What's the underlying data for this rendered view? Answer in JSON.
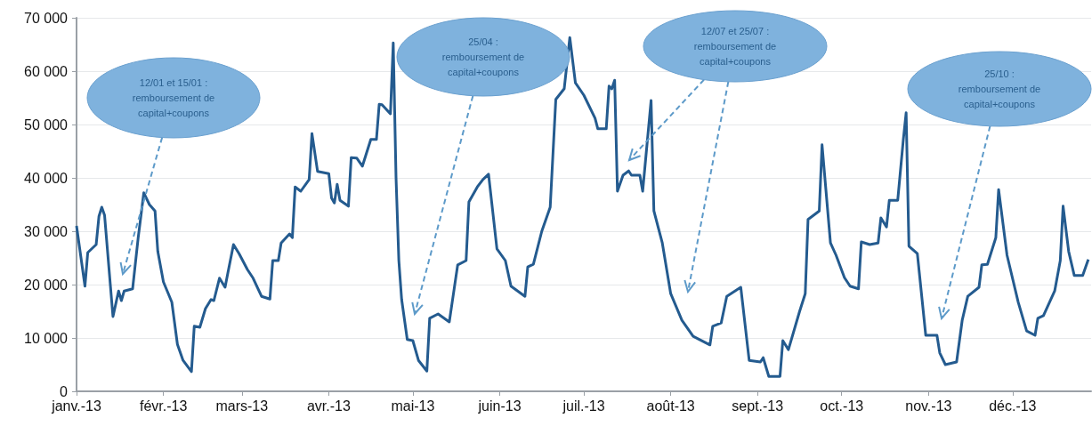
{
  "chart_data": {
    "type": "line",
    "grid": "y",
    "marker": "none",
    "line_style": "solid",
    "xlim": [
      "2013-01-01",
      "2013-12-29"
    ],
    "xticks": [
      {
        "value": "2013-01-01",
        "label": "janv.-13"
      },
      {
        "value": "2013-02-01",
        "label": "févr.-13"
      },
      {
        "value": "2013-03-01",
        "label": "mars-13"
      },
      {
        "value": "2013-04-01",
        "label": "avr.-13"
      },
      {
        "value": "2013-05-01",
        "label": "mai-13"
      },
      {
        "value": "2013-06-01",
        "label": "juin-13"
      },
      {
        "value": "2013-07-01",
        "label": "juil.-13"
      },
      {
        "value": "2013-08-01",
        "label": "août-13"
      },
      {
        "value": "2013-09-01",
        "label": "sept.-13"
      },
      {
        "value": "2013-10-01",
        "label": "oct.-13"
      },
      {
        "value": "2013-11-01",
        "label": "nov.-13"
      },
      {
        "value": "2013-12-01",
        "label": "déc.-13"
      }
    ],
    "ylim": [
      0,
      70000
    ],
    "yticks": [
      {
        "value": 0,
        "label": "0"
      },
      {
        "value": 10000,
        "label": "10 000"
      },
      {
        "value": 20000,
        "label": "20 000"
      },
      {
        "value": 30000,
        "label": "30 000"
      },
      {
        "value": 40000,
        "label": "40 000"
      },
      {
        "value": 50000,
        "label": "50 000"
      },
      {
        "value": 60000,
        "label": "60 000"
      },
      {
        "value": 70000,
        "label": "70 000"
      }
    ],
    "x": [
      "2013-01-01",
      "2013-01-04",
      "2013-01-05",
      "2013-01-08",
      "2013-01-09",
      "2013-01-10",
      "2013-01-11",
      "2013-01-14",
      "2013-01-16",
      "2013-01-17",
      "2013-01-18",
      "2013-01-21",
      "2013-01-23",
      "2013-01-25",
      "2013-01-27",
      "2013-01-29",
      "2013-01-30",
      "2013-02-01",
      "2013-02-04",
      "2013-02-06",
      "2013-02-08",
      "2013-02-11",
      "2013-02-12",
      "2013-02-14",
      "2013-02-16",
      "2013-02-18",
      "2013-02-19",
      "2013-02-21",
      "2013-02-23",
      "2013-02-24",
      "2013-02-26",
      "2013-02-28",
      "2013-03-03",
      "2013-03-05",
      "2013-03-08",
      "2013-03-11",
      "2013-03-12",
      "2013-03-14",
      "2013-03-15",
      "2013-03-18",
      "2013-03-19",
      "2013-03-20",
      "2013-03-22",
      "2013-03-25",
      "2013-03-26",
      "2013-03-28",
      "2013-04-01",
      "2013-04-02",
      "2013-04-03",
      "2013-04-04",
      "2013-04-05",
      "2013-04-08",
      "2013-04-09",
      "2013-04-11",
      "2013-04-13",
      "2013-04-16",
      "2013-04-18",
      "2013-04-19",
      "2013-04-20",
      "2013-04-23",
      "2013-04-24",
      "2013-04-25",
      "2013-04-26",
      "2013-04-27",
      "2013-04-29",
      "2013-05-01",
      "2013-05-03",
      "2013-05-06",
      "2013-05-07",
      "2013-05-10",
      "2013-05-14",
      "2013-05-17",
      "2013-05-20",
      "2013-05-21",
      "2013-05-24",
      "2013-05-26",
      "2013-05-28",
      "2013-05-31",
      "2013-06-03",
      "2013-06-05",
      "2013-06-10",
      "2013-06-11",
      "2013-06-13",
      "2013-06-16",
      "2013-06-19",
      "2013-06-21",
      "2013-06-24",
      "2013-06-26",
      "2013-06-28",
      "2013-07-01",
      "2013-07-05",
      "2013-07-06",
      "2013-07-09",
      "2013-07-10",
      "2013-07-11",
      "2013-07-12",
      "2013-07-13",
      "2013-07-15",
      "2013-07-17",
      "2013-07-18",
      "2013-07-21",
      "2013-07-22",
      "2013-07-25",
      "2013-07-26",
      "2013-07-29",
      "2013-08-01",
      "2013-08-05",
      "2013-08-09",
      "2013-08-15",
      "2013-08-16",
      "2013-08-19",
      "2013-08-21",
      "2013-08-26",
      "2013-08-29",
      "2013-09-02",
      "2013-09-03",
      "2013-09-05",
      "2013-09-09",
      "2013-09-10",
      "2013-09-12",
      "2013-09-16",
      "2013-09-18",
      "2013-09-19",
      "2013-09-23",
      "2013-09-24",
      "2013-09-27",
      "2013-09-29",
      "2013-10-02",
      "2013-10-04",
      "2013-10-07",
      "2013-10-08",
      "2013-10-11",
      "2013-10-14",
      "2013-10-15",
      "2013-10-17",
      "2013-10-18",
      "2013-10-21",
      "2013-10-23",
      "2013-10-24",
      "2013-10-25",
      "2013-10-28",
      "2013-10-31",
      "2013-11-04",
      "2013-11-05",
      "2013-11-07",
      "2013-11-11",
      "2013-11-13",
      "2013-11-15",
      "2013-11-19",
      "2013-11-20",
      "2013-11-22",
      "2013-11-25",
      "2013-11-26",
      "2013-11-29",
      "2013-12-03",
      "2013-12-06",
      "2013-12-09",
      "2013-12-10",
      "2013-12-12",
      "2013-12-16",
      "2013-12-18",
      "2013-12-19",
      "2013-12-21",
      "2013-12-23",
      "2013-12-26",
      "2013-12-28"
    ],
    "series": [
      {
        "color": "#245b8f",
        "values": [
          31000,
          19700,
          26000,
          27500,
          32800,
          34500,
          33000,
          14000,
          18800,
          17000,
          18800,
          19200,
          28800,
          37200,
          35000,
          33800,
          26200,
          20500,
          16700,
          8800,
          5800,
          3700,
          12200,
          12000,
          15500,
          17200,
          17000,
          21200,
          19500,
          22200,
          27500,
          25800,
          22800,
          21200,
          17800,
          17300,
          24500,
          24500,
          27800,
          29500,
          28800,
          38300,
          37500,
          39700,
          48300,
          41200,
          40800,
          36200,
          35300,
          38800,
          35800,
          34700,
          43800,
          43700,
          42200,
          47200,
          47200,
          53800,
          53700,
          52000,
          65300,
          40000,
          24500,
          17200,
          9700,
          9500,
          5800,
          3800,
          13700,
          14500,
          13000,
          23700,
          24500,
          35500,
          38300,
          39700,
          40700,
          26700,
          24500,
          19700,
          17800,
          23300,
          23800,
          30000,
          34500,
          54700,
          56700,
          66300,
          57800,
          55500,
          51200,
          49200,
          49200,
          57200,
          56700,
          58300,
          37500,
          40500,
          41300,
          40500,
          40500,
          37500,
          54500,
          33800,
          27800,
          18300,
          13300,
          10300,
          8700,
          12200,
          12800,
          17800,
          19500,
          5800,
          5500,
          6300,
          2800,
          2800,
          9500,
          7800,
          15000,
          18300,
          32200,
          33800,
          46200,
          27800,
          25500,
          21300,
          19700,
          19200,
          28000,
          27500,
          27800,
          32500,
          30800,
          35800,
          35800,
          47200,
          52200,
          27200,
          25800,
          10500,
          10500,
          7200,
          5000,
          5500,
          13300,
          17800,
          19500,
          23700,
          23800,
          28800,
          37800,
          25500,
          16700,
          11300,
          10500,
          13700,
          14200,
          18800,
          24500,
          34700,
          26200,
          21700,
          21700,
          24700
        ]
      }
    ],
    "annotations": [
      "12/01 et 15/01 :\nremboursement de\ncapital+coupons",
      "25/04 :\nremboursement de\ncapital+coupons",
      "12/07 et 25/07 :\nremboursement de\ncapital+coupons",
      "25/10 :\nremboursement de\ncapital+coupons"
    ]
  }
}
